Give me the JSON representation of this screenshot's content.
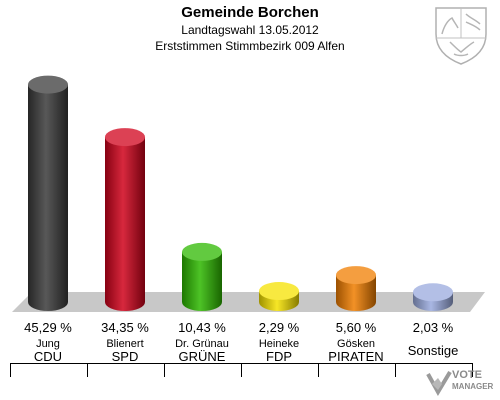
{
  "chart_data": {
    "type": "bar",
    "title": "Gemeinde Borchen",
    "subtitle": "Landtagswahl 13.05.2012",
    "subtitle2": "Erststimmen Stimmbezirk 009 Alfen",
    "categories": [
      "CDU",
      "SPD",
      "GRÜNE",
      "FDP",
      "PIRATEN",
      "Sonstige"
    ],
    "candidates": [
      "Jung",
      "Blienert",
      "Dr. Grünau",
      "Heineke",
      "Gösken",
      ""
    ],
    "values": [
      45.29,
      34.35,
      10.43,
      2.29,
      5.6,
      2.03
    ],
    "value_labels": [
      "45,29 %",
      "34,35 %",
      "10,43 %",
      "2,29 %",
      "5,60 %",
      "2,03 %"
    ],
    "colors": [
      "#3a3a3a",
      "#d0021b",
      "#2db800",
      "#f5e100",
      "#f07d00",
      "#9aaade"
    ],
    "ylim": [
      0,
      50
    ],
    "grid": false
  },
  "watermark": {
    "line1": "VOTE",
    "line2": "MANAGER"
  }
}
